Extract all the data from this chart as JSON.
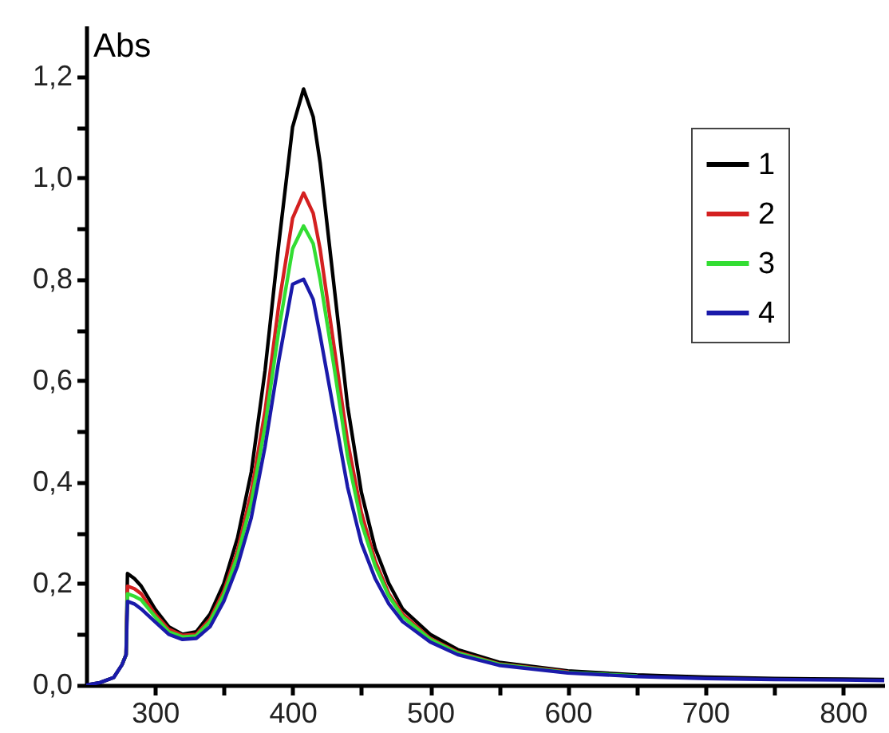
{
  "chart_data": {
    "type": "line",
    "ylabel": "Abs",
    "x": [
      250,
      260,
      270,
      276,
      279,
      280,
      285,
      290,
      300,
      310,
      320,
      330,
      340,
      350,
      360,
      370,
      380,
      390,
      400,
      408,
      415,
      420,
      430,
      440,
      450,
      460,
      470,
      480,
      500,
      520,
      550,
      600,
      650,
      700,
      750,
      800,
      830
    ],
    "series": [
      {
        "name": "1",
        "color": "#000000",
        "values": [
          0,
          0.005,
          0.015,
          0.04,
          0.06,
          0.22,
          0.21,
          0.195,
          0.15,
          0.115,
          0.1,
          0.105,
          0.14,
          0.2,
          0.29,
          0.42,
          0.62,
          0.87,
          1.1,
          1.175,
          1.12,
          1.03,
          0.79,
          0.55,
          0.38,
          0.27,
          0.2,
          0.15,
          0.1,
          0.07,
          0.045,
          0.028,
          0.02,
          0.016,
          0.013,
          0.012,
          0.011
        ]
      },
      {
        "name": "2",
        "color": "#d42020",
        "values": [
          null,
          null,
          null,
          0.04,
          0.06,
          0.195,
          0.19,
          0.18,
          0.14,
          0.11,
          0.098,
          0.1,
          0.13,
          0.185,
          0.265,
          0.38,
          0.54,
          0.75,
          0.92,
          0.97,
          0.93,
          0.86,
          0.67,
          0.48,
          0.34,
          0.245,
          0.18,
          0.14,
          0.092,
          0.065,
          0.042,
          0.026,
          null,
          null,
          null,
          null,
          null
        ]
      },
      {
        "name": "3",
        "color": "#33dd33",
        "values": [
          null,
          null,
          null,
          0.04,
          0.06,
          0.18,
          0.175,
          0.168,
          0.135,
          0.105,
          0.095,
          0.097,
          0.125,
          0.178,
          0.255,
          0.36,
          0.51,
          0.7,
          0.86,
          0.905,
          0.87,
          0.8,
          0.63,
          0.45,
          0.32,
          0.235,
          0.175,
          0.135,
          0.09,
          0.063,
          0.041,
          0.025,
          0.018,
          null,
          null,
          null,
          null
        ]
      },
      {
        "name": "4",
        "color": "#1a1aaa",
        "values": [
          0,
          0.005,
          0.015,
          0.04,
          0.06,
          0.165,
          0.16,
          0.15,
          0.125,
          0.1,
          0.09,
          0.092,
          0.115,
          0.165,
          0.235,
          0.33,
          0.47,
          0.64,
          0.79,
          0.8,
          0.76,
          0.69,
          0.54,
          0.39,
          0.28,
          0.21,
          0.16,
          0.125,
          0.085,
          0.06,
          0.039,
          0.024,
          0.017,
          0.013,
          0.011,
          0.01,
          0.009
        ]
      }
    ],
    "xlim": [
      250,
      830
    ],
    "xticks": [
      300,
      {
        "value": 350,
        "label": null
      },
      400,
      {
        "value": 450,
        "label": null
      },
      500,
      {
        "value": 550,
        "label": null
      },
      600,
      {
        "value": 650,
        "label": null
      },
      700,
      {
        "value": 750,
        "label": null
      },
      800
    ],
    "ylim": [
      0,
      1.3
    ],
    "yticks": [
      {
        "value": 0,
        "label": "0,0"
      },
      {
        "value": 0.1,
        "label": null
      },
      {
        "value": 0.2,
        "label": "0,2"
      },
      {
        "value": 0.3,
        "label": null
      },
      {
        "value": 0.4,
        "label": "0,4"
      },
      {
        "value": 0.5,
        "label": null
      },
      {
        "value": 0.6,
        "label": "0,6"
      },
      {
        "value": 0.7,
        "label": null
      },
      {
        "value": 0.8,
        "label": "0,8"
      },
      {
        "value": 0.9,
        "label": null
      },
      {
        "value": 1.0,
        "label": "1,0"
      },
      {
        "value": 1.1,
        "label": null
      },
      {
        "value": 1.2,
        "label": "1,2"
      }
    ],
    "grid": false,
    "legend": "top right",
    "line_style": "solid",
    "marker": "none"
  }
}
